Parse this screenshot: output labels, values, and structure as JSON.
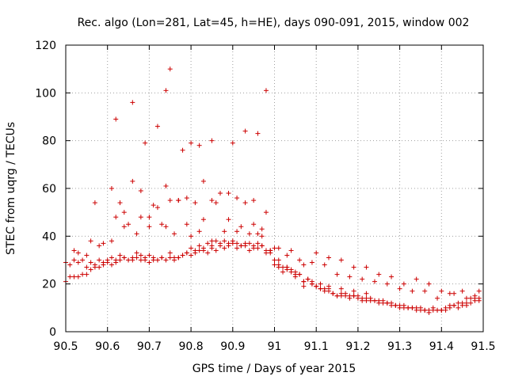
{
  "chart_data": {
    "type": "scatter",
    "title": "Rec. algo (Lon=281, Lat=45, h=HE), days 090-091, 2015, window 002",
    "xlabel": "GPS time / Days of year 2015",
    "ylabel": "STEC from uqrg / TECUs",
    "xlim": [
      90.5,
      91.5
    ],
    "ylim": [
      0,
      120
    ],
    "xticks": [
      90.5,
      90.6,
      90.7,
      90.8,
      90.9,
      91.0,
      91.1,
      91.2,
      91.3,
      91.4,
      91.5
    ],
    "xtick_labels": [
      "90.5",
      "90.6",
      "90.7",
      "90.8",
      "90.9",
      "91",
      "91.1",
      "91.2",
      "91.3",
      "91.4",
      "91.5"
    ],
    "yticks": [
      0,
      20,
      40,
      60,
      80,
      100,
      120
    ],
    "ytick_labels": [
      "0",
      "20",
      "40",
      "60",
      "80",
      "100",
      "120"
    ],
    "grid": true,
    "marker": "+",
    "color": "#cc0000",
    "x": [
      90.5,
      90.51,
      90.52,
      90.53,
      90.54,
      90.55,
      90.56,
      90.57,
      90.58,
      90.59,
      90.6,
      90.61,
      90.62,
      90.63,
      90.64,
      90.65,
      90.66,
      90.67,
      90.68,
      90.69,
      90.7,
      90.71,
      90.72,
      90.73,
      90.74,
      90.75,
      90.76,
      90.77,
      90.78,
      90.79,
      90.8,
      90.81,
      90.82,
      90.83,
      90.84,
      90.85,
      90.86,
      90.87,
      90.88,
      90.89,
      90.9,
      90.91,
      90.92,
      90.93,
      90.94,
      90.95,
      90.96,
      90.97,
      90.98,
      90.99,
      91.0,
      91.01,
      91.02,
      91.03,
      91.04,
      91.05,
      91.06,
      91.07,
      91.08,
      91.09,
      91.1,
      91.11,
      91.12,
      91.13,
      91.14,
      91.15,
      91.16,
      91.17,
      91.18,
      91.19,
      91.2,
      91.21,
      91.22,
      91.23,
      91.24,
      91.25,
      91.26,
      91.27,
      91.28,
      91.29,
      91.3,
      91.31,
      91.32,
      91.33,
      91.34,
      91.35,
      91.36,
      91.37,
      91.38,
      91.39,
      91.4,
      91.41,
      91.42,
      91.43,
      91.44,
      91.45,
      91.46,
      91.47,
      91.48,
      91.49,
      90.5,
      90.51,
      90.52,
      90.53,
      90.54,
      90.55,
      90.56,
      90.57,
      90.58,
      90.59,
      90.6,
      90.61,
      90.62,
      90.63,
      90.64,
      90.65,
      90.66,
      90.67,
      90.68,
      90.69,
      90.7,
      90.71,
      90.72,
      90.73,
      90.74,
      90.75,
      90.76,
      90.77,
      90.78,
      90.79,
      90.8,
      90.81,
      90.82,
      90.83,
      90.84,
      90.85,
      90.86,
      90.87,
      90.88,
      90.89,
      90.9,
      90.91,
      90.92,
      90.93,
      90.94,
      90.95,
      90.96,
      90.97,
      90.98,
      90.99,
      91.0,
      91.01,
      91.02,
      91.03,
      91.04,
      91.05,
      91.06,
      91.07,
      91.08,
      91.09,
      91.1,
      91.11,
      91.12,
      91.13,
      91.14,
      91.15,
      91.16,
      91.17,
      91.18,
      91.19,
      91.2,
      91.21,
      91.22,
      91.23,
      91.24,
      91.25,
      91.26,
      91.27,
      91.28,
      91.29,
      91.3,
      91.31,
      91.32,
      91.33,
      91.34,
      91.35,
      91.36,
      91.37,
      91.38,
      91.39,
      91.4,
      91.41,
      91.42,
      91.43,
      91.44,
      91.45,
      91.46,
      91.47,
      91.48,
      91.49,
      90.52,
      90.55,
      90.58,
      90.61,
      90.64,
      90.67,
      90.7,
      90.73,
      90.76,
      90.79,
      90.82,
      90.85,
      90.88,
      90.91,
      90.94,
      90.97,
      91.0,
      91.03,
      91.06,
      91.09,
      91.12,
      91.15,
      91.18,
      91.21,
      91.24,
      91.27,
      91.3,
      91.33,
      91.36,
      91.39,
      91.42,
      91.45,
      91.48,
      90.53,
      90.56,
      90.59,
      90.62,
      90.65,
      90.68,
      90.71,
      90.74,
      90.77,
      90.8,
      90.83,
      90.86,
      90.89,
      90.92,
      90.95,
      90.98,
      91.01,
      91.04,
      91.07,
      91.1,
      91.13,
      91.16,
      91.19,
      91.22,
      91.25,
      91.28,
      91.31,
      91.34,
      91.37,
      91.4,
      91.43,
      91.46,
      91.49,
      90.57,
      90.61,
      90.63,
      90.64,
      90.66,
      90.68,
      90.7,
      90.72,
      90.74,
      90.75,
      90.77,
      90.79,
      90.81,
      90.83,
      90.85,
      90.87,
      90.89,
      90.91,
      90.93,
      90.95,
      90.96,
      90.97,
      90.99,
      91.01,
      91.03,
      91.05,
      91.07,
      91.09,
      91.11,
      91.13,
      91.16,
      91.19,
      91.22,
      90.62,
      90.66,
      90.69,
      90.72,
      90.74,
      90.75,
      90.78,
      90.8,
      90.82,
      90.85,
      90.9,
      90.93,
      90.96,
      90.98
    ],
    "y": [
      29,
      28,
      30,
      29,
      30,
      27,
      29,
      28,
      30,
      29,
      30,
      31,
      30,
      32,
      31,
      30,
      30,
      33,
      30,
      31,
      32,
      31,
      30,
      31,
      30,
      33,
      31,
      31,
      32,
      33,
      32,
      33,
      34,
      34,
      33,
      35,
      34,
      36,
      35,
      37,
      37,
      35,
      36,
      36,
      34,
      35,
      35,
      36,
      33,
      33,
      30,
      27,
      27,
      27,
      26,
      25,
      24,
      21,
      22,
      20,
      19,
      18,
      17,
      17,
      16,
      15,
      15,
      15,
      14,
      15,
      15,
      14,
      13,
      14,
      13,
      13,
      13,
      12,
      12,
      11,
      11,
      11,
      10,
      10,
      10,
      10,
      9,
      9,
      10,
      9,
      9,
      10,
      11,
      11,
      12,
      12,
      12,
      14,
      14,
      14,
      21,
      23,
      23,
      23,
      24,
      24,
      26,
      27,
      27,
      28,
      29,
      28,
      29,
      30,
      31,
      30,
      31,
      31,
      32,
      30,
      29,
      30,
      30,
      31,
      30,
      31,
      30,
      31,
      32,
      33,
      35,
      34,
      36,
      35,
      37,
      36,
      38,
      37,
      38,
      36,
      38,
      37,
      36,
      37,
      37,
      36,
      37,
      36,
      34,
      34,
      28,
      28,
      25,
      26,
      25,
      24,
      24,
      21,
      22,
      21,
      19,
      18,
      18,
      18,
      16,
      15,
      16,
      16,
      15,
      15,
      14,
      13,
      14,
      13,
      13,
      12,
      12,
      12,
      11,
      11,
      10,
      10,
      10,
      10,
      9,
      9,
      9,
      8,
      9,
      9,
      9,
      9,
      10,
      11,
      10,
      11,
      11,
      12,
      13,
      13,
      34,
      32,
      36,
      38,
      44,
      41,
      44,
      45,
      41,
      45,
      42,
      38,
      42,
      42,
      41,
      40,
      35,
      32,
      30,
      29,
      28,
      24,
      23,
      22,
      21,
      20,
      18,
      17,
      17,
      14,
      16,
      17,
      15,
      33,
      38,
      37,
      48,
      45,
      48,
      53,
      44,
      55,
      40,
      47,
      54,
      47,
      44,
      55,
      50,
      35,
      34,
      28,
      33,
      31,
      30,
      27,
      27,
      24,
      23,
      20,
      22,
      20,
      17,
      16,
      14,
      17,
      54,
      60,
      54,
      50,
      63,
      59,
      48,
      52,
      61,
      55,
      55,
      56,
      54,
      63,
      55,
      58,
      58,
      56,
      54,
      45,
      41,
      43,
      34,
      30,
      27,
      23,
      19,
      20,
      20,
      19,
      18,
      17,
      16,
      89,
      96,
      79,
      86,
      101,
      110,
      76,
      79,
      78,
      80,
      79,
      84,
      83,
      101
    ]
  }
}
